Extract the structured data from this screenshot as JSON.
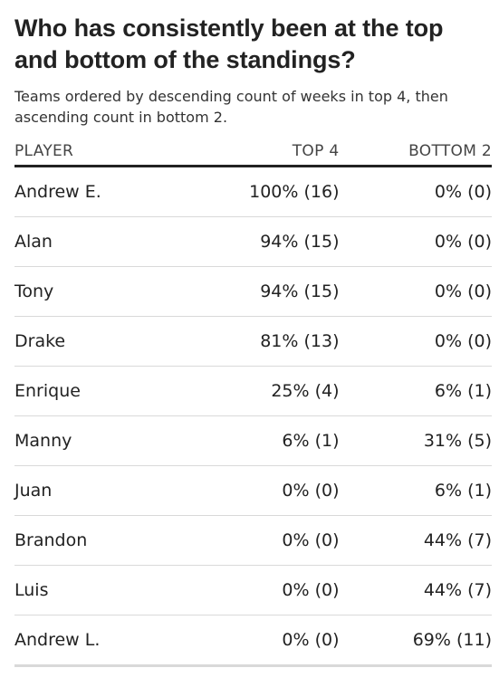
{
  "title": "Who has consistently been at the top and bottom of the standings?",
  "subtitle": "Teams ordered by descending count of weeks in top 4, then ascending count in bottom 2.",
  "chart_data": {
    "type": "table",
    "columns": [
      "PLAYER",
      "TOP 4",
      "BOTTOM 2"
    ],
    "rows": [
      {
        "player": "Andrew E.",
        "top4": "100% (16)",
        "bottom2": "0% (0)"
      },
      {
        "player": "Alan",
        "top4": "94% (15)",
        "bottom2": "0% (0)"
      },
      {
        "player": "Tony",
        "top4": "94% (15)",
        "bottom2": "0% (0)"
      },
      {
        "player": "Drake",
        "top4": "81% (13)",
        "bottom2": "0% (0)"
      },
      {
        "player": "Enrique",
        "top4": "25% (4)",
        "bottom2": "6% (1)"
      },
      {
        "player": "Manny",
        "top4": "6% (1)",
        "bottom2": "31% (5)"
      },
      {
        "player": "Juan",
        "top4": "0% (0)",
        "bottom2": "6% (1)"
      },
      {
        "player": "Brandon",
        "top4": "0% (0)",
        "bottom2": "44% (7)"
      },
      {
        "player": "Luis",
        "top4": "0% (0)",
        "bottom2": "44% (7)"
      },
      {
        "player": "Andrew L.",
        "top4": "0% (0)",
        "bottom2": "69% (11)"
      }
    ]
  }
}
